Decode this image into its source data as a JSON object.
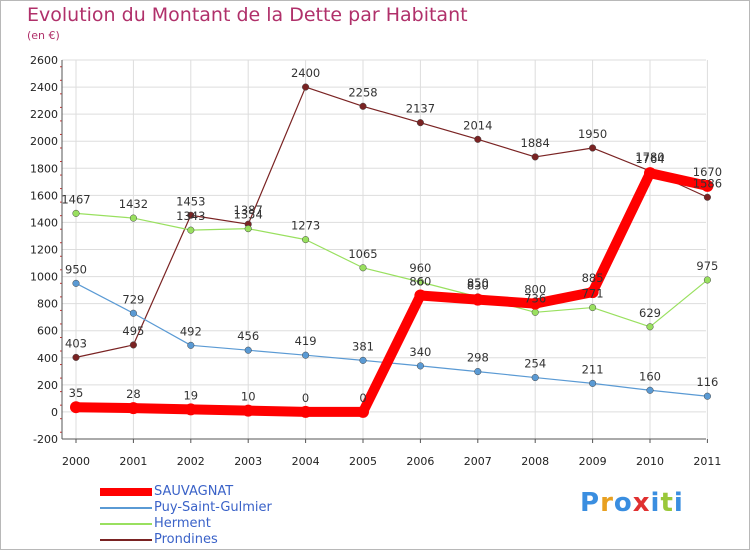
{
  "chart_data": {
    "type": "line",
    "title": "Evolution du Montant de la Dette par Habitant",
    "subtitle": "(en €)",
    "xlabel": "",
    "ylabel": "",
    "categories": [
      "2000",
      "2001",
      "2002",
      "2003",
      "2004",
      "2005",
      "2006",
      "2007",
      "2008",
      "2009",
      "2010",
      "2011"
    ],
    "ylim": [
      -200,
      2600
    ],
    "yticks": [
      -200,
      0,
      200,
      400,
      600,
      800,
      1000,
      1200,
      1400,
      1600,
      1800,
      2000,
      2200,
      2400,
      2600
    ],
    "grid": true,
    "legend": "bottom-left",
    "series": [
      {
        "name": "Prondines",
        "color": "#7a2323",
        "values": [
          403,
          495,
          1453,
          1387,
          2400,
          2258,
          2137,
          2014,
          1884,
          1950,
          1780,
          1586
        ]
      },
      {
        "name": "Herment",
        "color": "#99e05f",
        "values": [
          1467,
          1432,
          1343,
          1354,
          1273,
          1065,
          960,
          850,
          736,
          771,
          629,
          975
        ]
      },
      {
        "name": "Puy-Saint-Gulmier",
        "color": "#5a9ad4",
        "values": [
          950,
          729,
          492,
          456,
          419,
          381,
          340,
          298,
          254,
          211,
          160,
          116
        ]
      },
      {
        "name": "SAUVAGNAT",
        "color": "#ff0000",
        "values": [
          35,
          28,
          19,
          10,
          0,
          0,
          860,
          830,
          800,
          885,
          1764,
          1670
        ]
      }
    ],
    "legend_order": [
      "SAUVAGNAT",
      "Puy-Saint-Gulmier",
      "Herment",
      "Prondines"
    ]
  },
  "logo": {
    "text": "Proxiti",
    "letters": [
      {
        "ch": "P",
        "color": "#3a8ee0"
      },
      {
        "ch": "r",
        "color": "#e8a020"
      },
      {
        "ch": "o",
        "color": "#3a8ee0"
      },
      {
        "ch": "x",
        "color": "#e03030"
      },
      {
        "ch": "i",
        "color": "#3a8ee0"
      },
      {
        "ch": "t",
        "color": "#9ac83a"
      },
      {
        "ch": "i",
        "color": "#3a8ee0"
      }
    ]
  }
}
